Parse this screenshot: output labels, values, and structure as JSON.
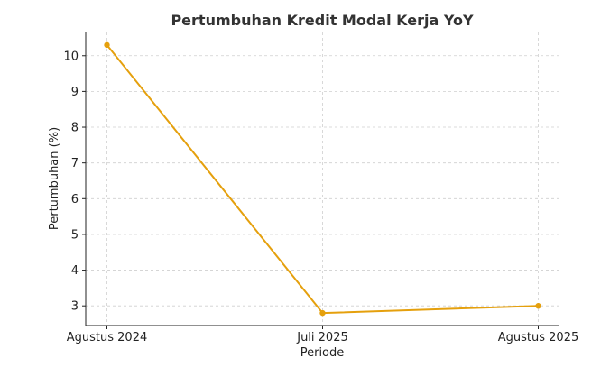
{
  "chart_data": {
    "type": "line",
    "title": "Pertumbuhan Kredit Modal Kerja YoY",
    "xlabel": "Periode",
    "ylabel": "Pertumbuhan (%)",
    "categories": [
      "Agustus 2024",
      "Juli 2025",
      "Agustus 2025"
    ],
    "series": [
      {
        "values": [
          10.3,
          2.8,
          3.0
        ],
        "color": "#E5A00D"
      }
    ],
    "yticks": [
      3,
      4,
      5,
      6,
      7,
      8,
      9,
      10
    ],
    "ylim": [
      2.45,
      10.65
    ],
    "grid": true,
    "legend": "none"
  }
}
